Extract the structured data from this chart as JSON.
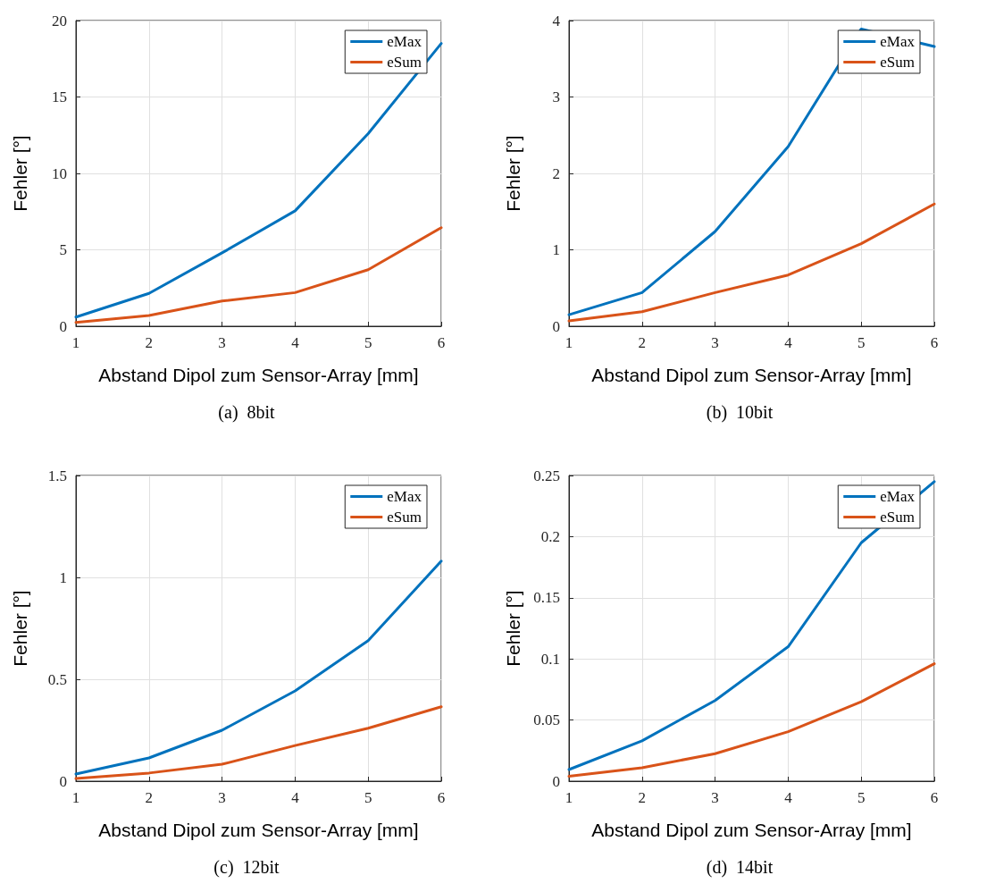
{
  "chart_data": [
    {
      "type": "line",
      "xlabel": "Abstand Dipol zum Sensor-Array [mm]",
      "ylabel": "Fehler [°]",
      "annotations": [
        "(a)  8bit"
      ],
      "x": [
        1,
        2,
        3,
        4,
        5,
        6
      ],
      "xlim": [
        1,
        6
      ],
      "xticks": [
        1,
        2,
        3,
        4,
        5,
        6
      ],
      "ylim": [
        0,
        20
      ],
      "yticks": [
        0,
        5,
        10,
        15,
        20
      ],
      "grid": true,
      "legend": "top right",
      "line_style": "solid",
      "series": [
        {
          "name": "eMax",
          "color": "#0072bd",
          "values": [
            0.6,
            2.15,
            4.8,
            7.55,
            12.6,
            18.5
          ]
        },
        {
          "name": "eSum",
          "color": "#d95319",
          "values": [
            0.25,
            0.7,
            1.65,
            2.2,
            3.7,
            6.45
          ]
        }
      ]
    },
    {
      "type": "line",
      "xlabel": "Abstand Dipol zum Sensor-Array [mm]",
      "ylabel": "Fehler [°]",
      "annotations": [
        "(b)  10bit"
      ],
      "x": [
        1,
        2,
        3,
        4,
        5,
        6
      ],
      "xlim": [
        1,
        6
      ],
      "xticks": [
        1,
        2,
        3,
        4,
        5,
        6
      ],
      "ylim": [
        0,
        4
      ],
      "yticks": [
        0,
        1,
        2,
        3,
        4
      ],
      "grid": true,
      "legend": "top right",
      "line_style": "solid",
      "series": [
        {
          "name": "eMax",
          "color": "#0072bd",
          "values": [
            0.15,
            0.44,
            1.24,
            2.35,
            3.89,
            3.66
          ]
        },
        {
          "name": "eSum",
          "color": "#d95319",
          "values": [
            0.07,
            0.19,
            0.44,
            0.67,
            1.08,
            1.6
          ]
        }
      ]
    },
    {
      "type": "line",
      "xlabel": "Abstand Dipol zum Sensor-Array [mm]",
      "ylabel": "Fehler [°]",
      "annotations": [
        "(c)  12bit"
      ],
      "x": [
        1,
        2,
        3,
        4,
        5,
        6
      ],
      "xlim": [
        1,
        6
      ],
      "xticks": [
        1,
        2,
        3,
        4,
        5,
        6
      ],
      "ylim": [
        0,
        1.5
      ],
      "yticks": [
        0,
        0.5,
        1,
        1.5
      ],
      "grid": true,
      "legend": "top right",
      "line_style": "solid",
      "series": [
        {
          "name": "eMax",
          "color": "#0072bd",
          "values": [
            0.035,
            0.114,
            0.25,
            0.443,
            0.69,
            1.08
          ]
        },
        {
          "name": "eSum",
          "color": "#d95319",
          "values": [
            0.013,
            0.04,
            0.083,
            0.175,
            0.26,
            0.365
          ]
        }
      ]
    },
    {
      "type": "line",
      "xlabel": "Abstand Dipol zum Sensor-Array [mm]",
      "ylabel": "Fehler [°]",
      "annotations": [
        "(d)  14bit"
      ],
      "x": [
        1,
        2,
        3,
        4,
        5,
        6
      ],
      "xlim": [
        1,
        6
      ],
      "xticks": [
        1,
        2,
        3,
        4,
        5,
        6
      ],
      "ylim": [
        0,
        0.25
      ],
      "yticks": [
        0,
        0.05,
        0.1,
        0.15,
        0.2,
        0.25
      ],
      "grid": true,
      "legend": "top right",
      "line_style": "solid",
      "series": [
        {
          "name": "eMax",
          "color": "#0072bd",
          "values": [
            0.0095,
            0.033,
            0.066,
            0.11,
            0.195,
            0.245
          ]
        },
        {
          "name": "eSum",
          "color": "#d95319",
          "values": [
            0.004,
            0.011,
            0.0225,
            0.0405,
            0.065,
            0.096
          ]
        }
      ]
    }
  ]
}
